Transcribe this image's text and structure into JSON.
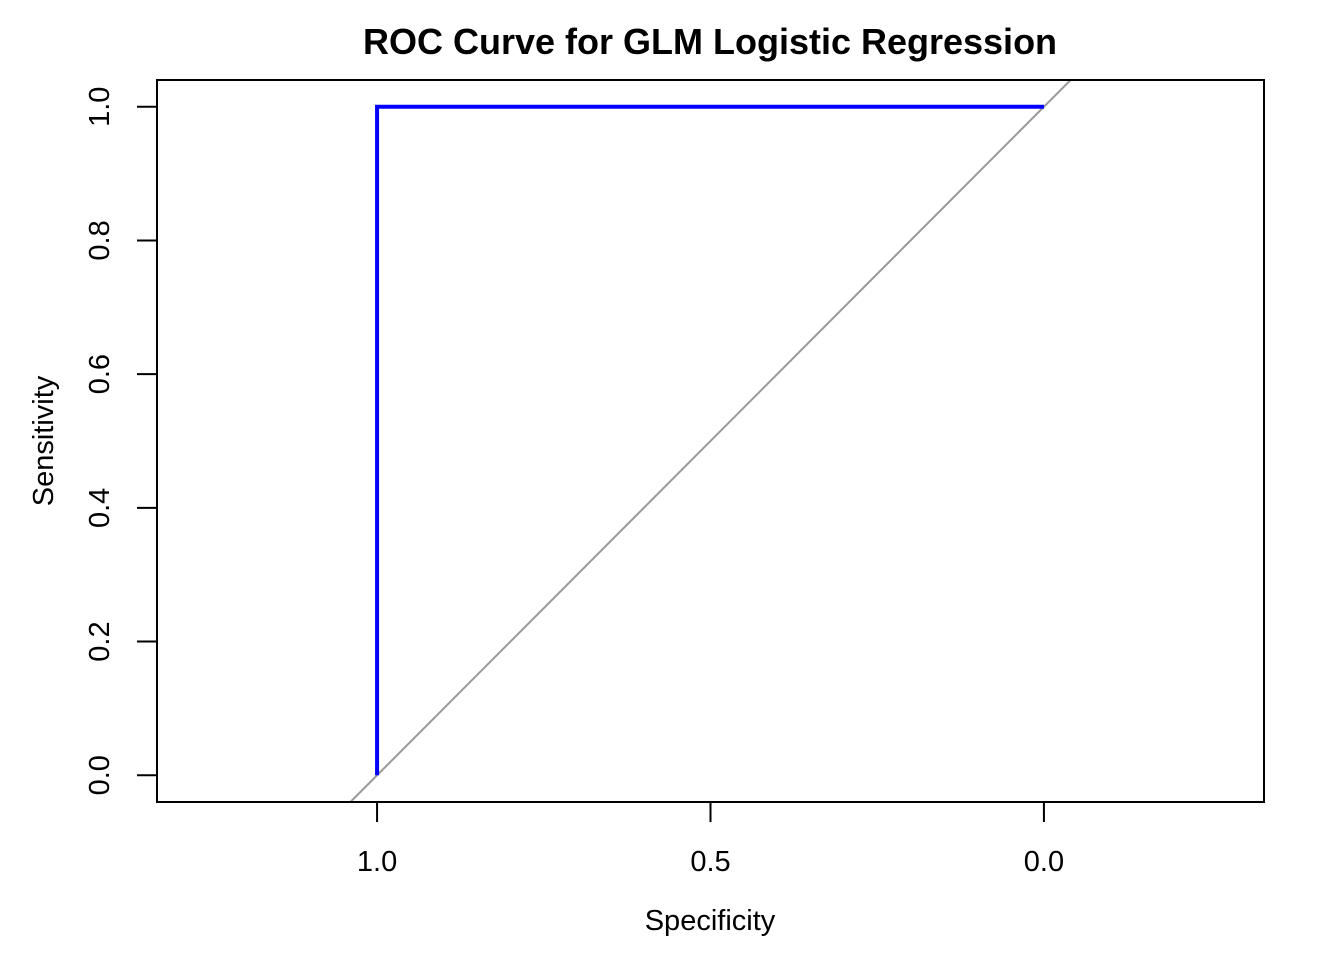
{
  "chart_data": {
    "type": "line",
    "title": "ROC Curve for GLM Logistic Regression",
    "xlabel": "Specificity",
    "ylabel": "Sensitivity",
    "x_reversed": true,
    "xlim": [
      1.33,
      -0.33
    ],
    "ylim": [
      -0.04,
      1.04
    ],
    "x_ticks": [
      {
        "value": 1.0,
        "label": "1.0"
      },
      {
        "value": 0.5,
        "label": "0.5"
      },
      {
        "value": 0.0,
        "label": "0.0"
      }
    ],
    "y_ticks": [
      {
        "value": 0.0,
        "label": "0.0"
      },
      {
        "value": 0.2,
        "label": "0.2"
      },
      {
        "value": 0.4,
        "label": "0.4"
      },
      {
        "value": 0.6,
        "label": "0.6"
      },
      {
        "value": 0.8,
        "label": "0.8"
      },
      {
        "value": 1.0,
        "label": "1.0"
      }
    ],
    "grid": false,
    "legend": "none",
    "series": [
      {
        "role": "roc-curve",
        "color": "#0000ff",
        "points": [
          {
            "x": 1.0,
            "y": 0.0
          },
          {
            "x": 1.0,
            "y": 1.0
          },
          {
            "x": 0.0,
            "y": 1.0
          }
        ]
      }
    ],
    "reference_line": {
      "role": "chance-diagonal",
      "color": "#999999",
      "intercept": 1,
      "slope": -1
    }
  }
}
